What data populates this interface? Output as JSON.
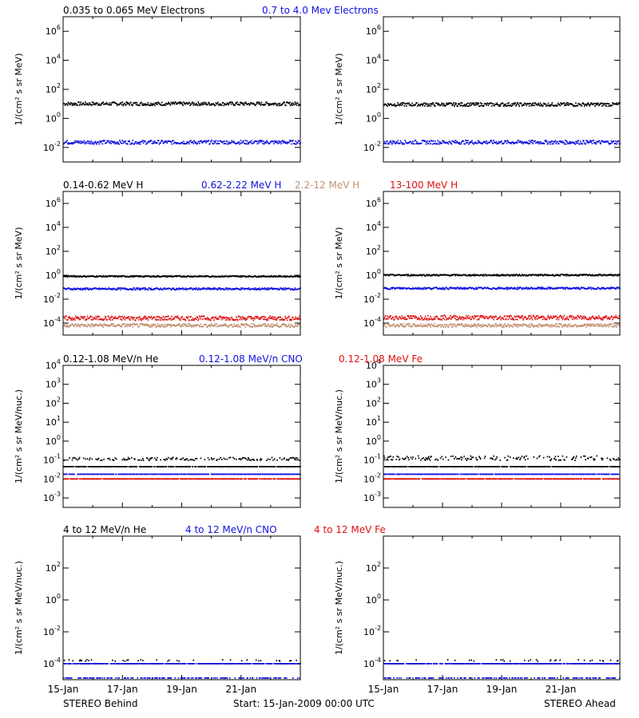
{
  "colors": {
    "black": "#000000",
    "blue": "#1010e0",
    "tan": "#c09070",
    "red": "#e01010"
  },
  "x_ticks": [
    "15-Jan",
    "17-Jan",
    "19-Jan",
    "21-Jan"
  ],
  "footer": {
    "left": "STEREO Behind",
    "center": "Start: 15-Jan-2009 00:00 UTC",
    "right": "STEREO Ahead"
  },
  "rows": [
    {
      "ylabel": "1/(cm² s sr MeV)",
      "titles": [
        {
          "text": "0.035 to 0.065 MeV Electrons",
          "color": "black"
        },
        {
          "text": "0.7 to 4.0 Mev Electrons",
          "color": "blue"
        }
      ],
      "ylim": [
        -3,
        7
      ],
      "ticks": [
        {
          "exp": 6,
          "label": "10^6"
        },
        {
          "exp": 4,
          "label": "10^4"
        },
        {
          "exp": 2,
          "label": "10^2"
        },
        {
          "exp": 0,
          "label": "10^0"
        },
        {
          "exp": -2,
          "label": "10^-2"
        }
      ]
    },
    {
      "ylabel": "1/(cm² s sr MeV)",
      "titles": [
        {
          "text": "0.14-0.62 MeV H",
          "color": "black"
        },
        {
          "text": "0.62-2.22 MeV H",
          "color": "blue"
        },
        {
          "text": "2.2-12 MeV H",
          "color": "tan"
        },
        {
          "text": "13-100 MeV H",
          "color": "red"
        }
      ],
      "ylim": [
        -5,
        7
      ],
      "ticks": [
        {
          "exp": 6,
          "label": "10^6"
        },
        {
          "exp": 4,
          "label": "10^4"
        },
        {
          "exp": 2,
          "label": "10^2"
        },
        {
          "exp": 0,
          "label": "10^0"
        },
        {
          "exp": -2,
          "label": "10^-2"
        },
        {
          "exp": -4,
          "label": "10^-4"
        }
      ]
    },
    {
      "ylabel": "1/(cm² s sr MeV/nuc.)",
      "titles": [
        {
          "text": "0.12-1.08 MeV/n He",
          "color": "black"
        },
        {
          "text": "0.12-1.08 MeV/n CNO",
          "color": "blue"
        },
        {
          "text": "0.12-1.08 MeV Fe",
          "color": "red"
        }
      ],
      "ylim": [
        -3.5,
        4
      ],
      "ticks": [
        {
          "exp": 4,
          "label": "10^4"
        },
        {
          "exp": 3,
          "label": "10^3"
        },
        {
          "exp": 2,
          "label": "10^2"
        },
        {
          "exp": 1,
          "label": "10^1"
        },
        {
          "exp": 0,
          "label": "10^0"
        },
        {
          "exp": -1,
          "label": "10^-1"
        },
        {
          "exp": -2,
          "label": "10^-2"
        },
        {
          "exp": -3,
          "label": "10^-3"
        }
      ]
    },
    {
      "ylabel": "1/(cm² s sr MeV/nuc.)",
      "titles": [
        {
          "text": "4 to 12 MeV/n He",
          "color": "black"
        },
        {
          "text": "4 to 12 MeV/n CNO",
          "color": "blue"
        },
        {
          "text": "4 to 12 MeV Fe",
          "color": "red"
        }
      ],
      "ylim": [
        -5,
        4
      ],
      "ticks": [
        {
          "exp": 2,
          "label": "10^2"
        },
        {
          "exp": 0,
          "label": "10^0"
        },
        {
          "exp": -2,
          "label": "10^-2"
        },
        {
          "exp": -4,
          "label": "10^-4"
        }
      ]
    }
  ],
  "chart_data": [
    {
      "type": "scatter",
      "panel": "behind-electrons",
      "yscale": "log",
      "xlim": [
        0,
        8
      ],
      "ylim": [
        -3,
        7
      ],
      "series": [
        {
          "color": "black",
          "level": 1.0,
          "noise": 0.12
        },
        {
          "color": "blue",
          "level": -1.65,
          "noise": 0.13
        }
      ]
    },
    {
      "type": "scatter",
      "panel": "ahead-electrons",
      "yscale": "log",
      "xlim": [
        0,
        8
      ],
      "ylim": [
        -3,
        7
      ],
      "series": [
        {
          "color": "black",
          "level": 0.95,
          "noise": 0.12
        },
        {
          "color": "blue",
          "level": -1.65,
          "noise": 0.13
        }
      ]
    },
    {
      "type": "scatter",
      "panel": "behind-protons",
      "yscale": "log",
      "xlim": [
        0,
        8
      ],
      "ylim": [
        -5,
        7
      ],
      "series": [
        {
          "color": "black",
          "level": -0.1,
          "noise": 0.05
        },
        {
          "color": "blue",
          "level": -1.15,
          "noise": 0.08
        },
        {
          "color": "red",
          "level": -3.6,
          "noise": 0.18
        },
        {
          "color": "tan",
          "level": -4.2,
          "noise": 0.14
        }
      ]
    },
    {
      "type": "scatter",
      "panel": "ahead-protons",
      "yscale": "log",
      "xlim": [
        0,
        8
      ],
      "ylim": [
        -5,
        7
      ],
      "series": [
        {
          "color": "black",
          "level": 0.0,
          "noise": 0.06
        },
        {
          "color": "blue",
          "level": -1.1,
          "noise": 0.08
        },
        {
          "color": "red",
          "level": -3.55,
          "noise": 0.18
        },
        {
          "color": "tan",
          "level": -4.2,
          "noise": 0.14
        }
      ]
    },
    {
      "type": "scatter",
      "panel": "behind-suprathermal",
      "yscale": "log",
      "xlim": [
        0,
        8
      ],
      "ylim": [
        -3.5,
        4
      ],
      "series": [
        {
          "color": "black",
          "level": -1.35,
          "noise": 0.0
        },
        {
          "color": "black",
          "level": -0.95,
          "noise": 0.08
        },
        {
          "color": "blue",
          "level": -1.75,
          "noise": 0.0
        },
        {
          "color": "red",
          "level": -2.0,
          "noise": 0.0
        }
      ]
    },
    {
      "type": "scatter",
      "panel": "ahead-suprathermal",
      "yscale": "log",
      "xlim": [
        0,
        8
      ],
      "ylim": [
        -3.5,
        4
      ],
      "series": [
        {
          "color": "black",
          "level": -1.35,
          "noise": 0.0
        },
        {
          "color": "black",
          "level": -0.9,
          "noise": 0.12
        },
        {
          "color": "blue",
          "level": -1.75,
          "noise": 0.0
        },
        {
          "color": "red",
          "level": -2.0,
          "noise": 0.0
        }
      ]
    },
    {
      "type": "scatter",
      "panel": "behind-energetic",
      "yscale": "log",
      "xlim": [
        0,
        8
      ],
      "ylim": [
        -5,
        4
      ],
      "series": [
        {
          "color": "blue",
          "level": -4.0,
          "noise": 0.0
        },
        {
          "color": "black",
          "level": -3.8,
          "noise": 0.05
        },
        {
          "color": "blue",
          "level": -4.9,
          "noise": 0.0
        }
      ]
    },
    {
      "type": "scatter",
      "panel": "ahead-energetic",
      "yscale": "log",
      "xlim": [
        0,
        8
      ],
      "ylim": [
        -5,
        4
      ],
      "series": [
        {
          "color": "blue",
          "level": -4.0,
          "noise": 0.0
        },
        {
          "color": "black",
          "level": -3.8,
          "noise": 0.05
        },
        {
          "color": "blue",
          "level": -4.9,
          "noise": 0.0
        }
      ]
    }
  ]
}
